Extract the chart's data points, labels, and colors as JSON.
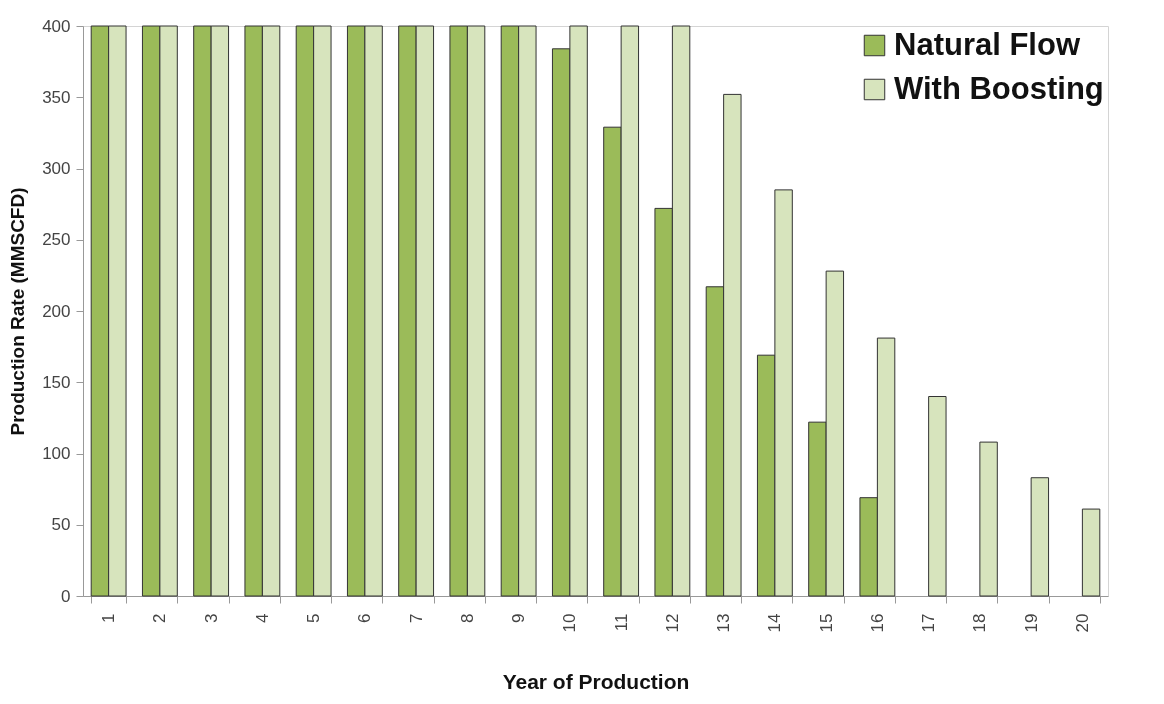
{
  "chart_data": {
    "type": "bar",
    "xlabel": "Year of Production",
    "ylabel": "Production Rate (MMSCFD)",
    "categories": [
      "1",
      "2",
      "3",
      "4",
      "5",
      "6",
      "7",
      "8",
      "9",
      "10",
      "11",
      "12",
      "13",
      "14",
      "15",
      "16",
      "17",
      "18",
      "19",
      "20"
    ],
    "series": [
      {
        "name": "Natural Flow",
        "color": "#9bbb59",
        "values": [
          400,
          400,
          400,
          400,
          400,
          400,
          400,
          400,
          400,
          384,
          329,
          272,
          217,
          169,
          122,
          69,
          null,
          null,
          null,
          null
        ]
      },
      {
        "name": "With Boosting",
        "color": "#d7e4bd",
        "values": [
          400,
          400,
          400,
          400,
          400,
          400,
          400,
          400,
          400,
          400,
          400,
          400,
          352,
          285,
          228,
          181,
          140,
          108,
          83,
          61
        ]
      }
    ],
    "ylim": [
      0,
      400
    ],
    "yticks": [
      0,
      50,
      100,
      150,
      200,
      250,
      300,
      350,
      400
    ],
    "grid": false,
    "legend": "top right"
  }
}
